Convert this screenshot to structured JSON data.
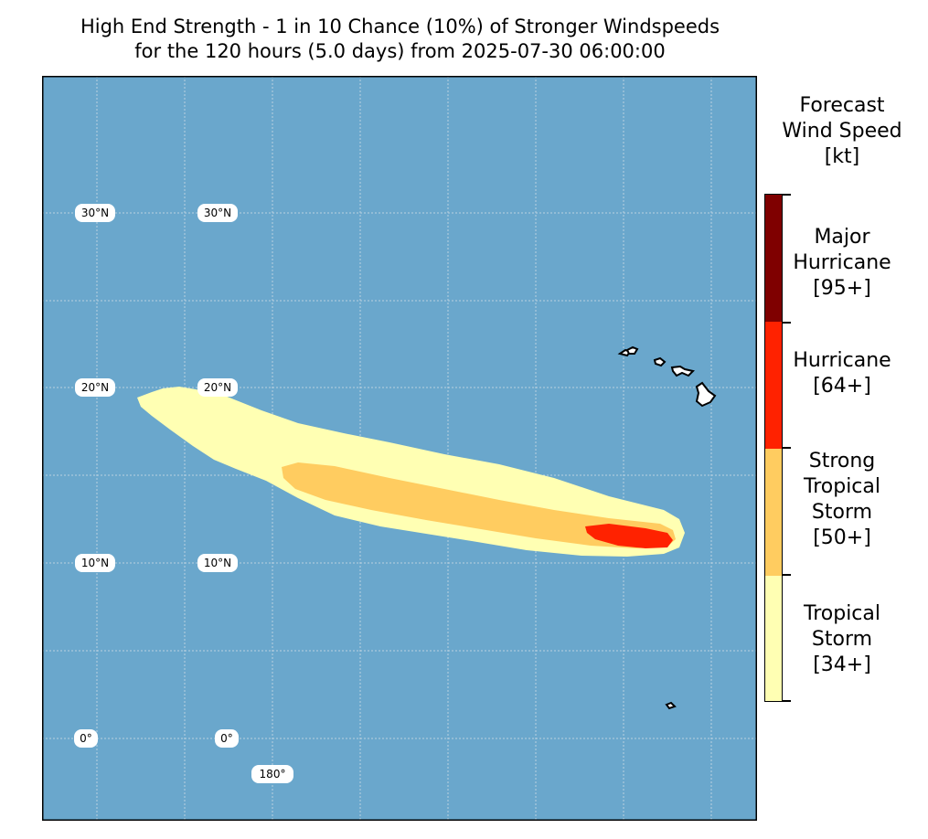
{
  "title": {
    "line1": "High End Strength - 1 in 10 Chance (10%) of Stronger Windspeeds",
    "line2": "for the 120 hours (5.0 days) from 2025-07-30 06:00:00"
  },
  "map": {
    "ocean_color": "#6aa7cc",
    "lat_labels": [
      "30°N",
      "20°N",
      "10°N",
      "0°"
    ],
    "lon_labels": [
      "180°"
    ],
    "features": [
      "hawaiian-islands",
      "wind-speed-swath"
    ]
  },
  "colorbar": {
    "title_lines": [
      "Forecast",
      "Wind Speed",
      "[kt]"
    ],
    "categories": [
      {
        "name": "Major Hurricane",
        "lines": [
          "Major",
          "Hurricane",
          "[95+]"
        ],
        "threshold_kt": 95,
        "color": "#7f0000"
      },
      {
        "name": "Hurricane",
        "lines": [
          "Hurricane",
          "[64+]"
        ],
        "threshold_kt": 64,
        "color": "#ff2200"
      },
      {
        "name": "Strong Tropical Storm",
        "lines": [
          "Strong",
          "Tropical",
          "Storm",
          "[50+]"
        ],
        "threshold_kt": 50,
        "color": "#ffcc60"
      },
      {
        "name": "Tropical Storm",
        "lines": [
          "Tropical",
          "Storm",
          "[34+]"
        ],
        "threshold_kt": 34,
        "color": "#ffffb3"
      }
    ]
  }
}
